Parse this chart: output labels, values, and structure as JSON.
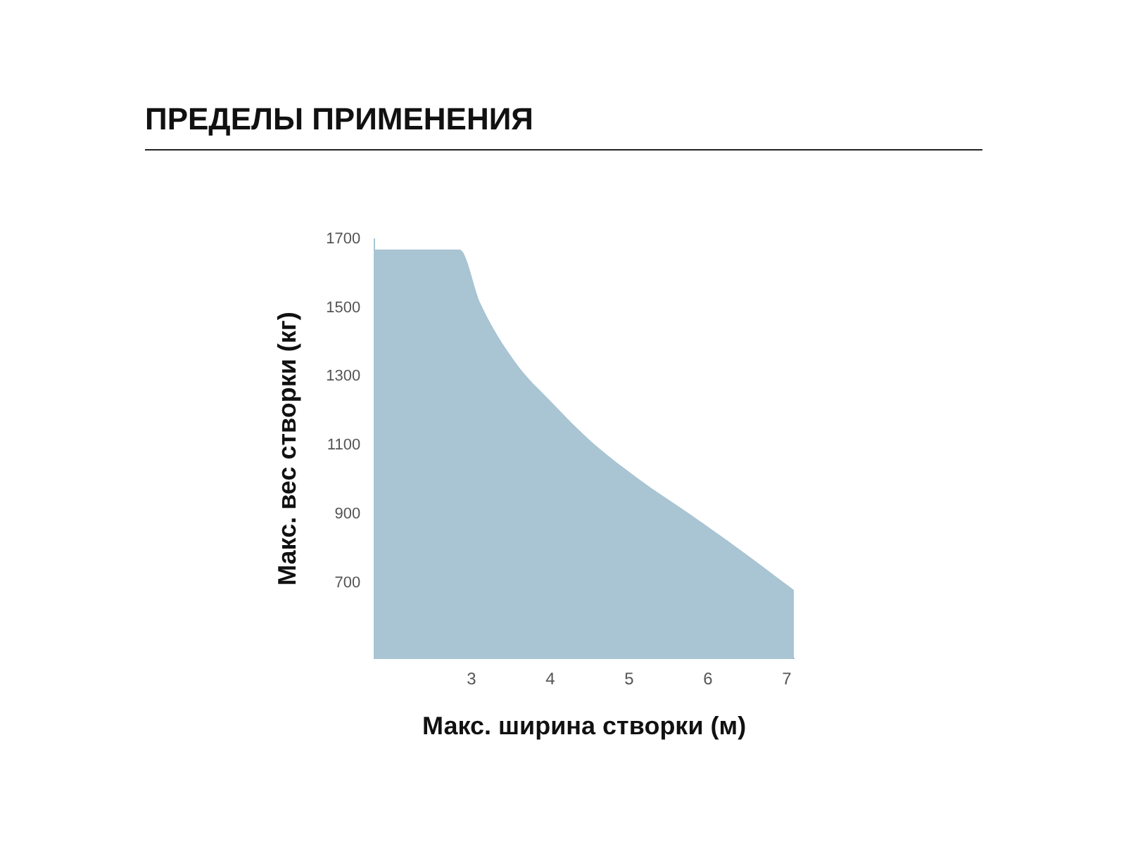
{
  "chart_data": {
    "type": "area",
    "title": "ПРЕДЕЛЫ ПРИМЕНЕНИЯ",
    "xlabel": "Макс. ширина створки (м)",
    "ylabel": "Макс. вес створки (кг)",
    "x": [
      1.77,
      2.85,
      3.12,
      3.55,
      4.04,
      4.52,
      5.14,
      5.75,
      6.36,
      7.09
    ],
    "series": [
      {
        "color": "#a9c4d3",
        "values": [
          1670,
          1670,
          1510,
          1344,
          1220,
          1111,
          999,
          903,
          804,
          679
        ]
      }
    ],
    "xlim": [
      1.77,
      7.09
    ],
    "ylim": [
      480,
      1700
    ],
    "xticks": [
      3,
      4,
      5,
      6,
      7
    ],
    "yticks": [
      700,
      900,
      1100,
      1300,
      1500,
      1700
    ],
    "grid": false,
    "legend": false
  }
}
